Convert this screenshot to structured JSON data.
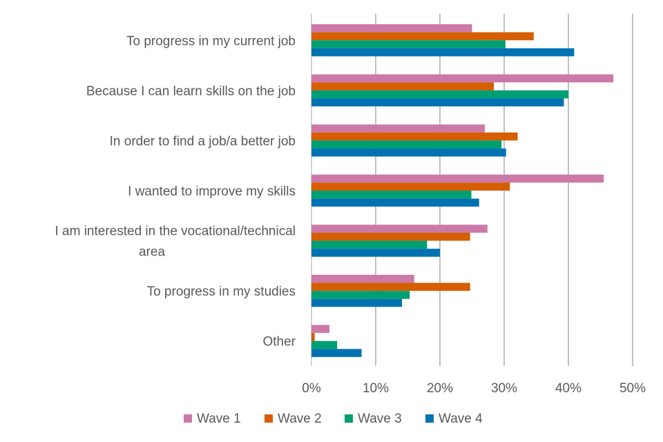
{
  "chart_data": {
    "type": "bar",
    "orientation": "horizontal",
    "categories": [
      "To progress in my current job",
      "Because I can learn skills on the job",
      "In order to find a job/a better job",
      "I wanted to improve my skills",
      "I am interested in the vocational/technical area",
      "To progress in my studies",
      "Other"
    ],
    "category_lines": [
      [
        "To progress in my current job"
      ],
      [
        "Because I can learn skills on the job"
      ],
      [
        "In order to find a job/a better job"
      ],
      [
        "I wanted to improve my skills"
      ],
      [
        "I am interested in the vocational/technical",
        "area"
      ],
      [
        "To progress in my studies"
      ],
      [
        "Other"
      ]
    ],
    "series": [
      {
        "name": "Wave 1",
        "color": "#cc79a7",
        "values": [
          25,
          47,
          27,
          45.5,
          27.4,
          16,
          2.8
        ]
      },
      {
        "name": "Wave 2",
        "color": "#d55e00",
        "values": [
          34.6,
          28.4,
          32.1,
          30.9,
          24.7,
          24.7,
          0.5
        ]
      },
      {
        "name": "Wave 3",
        "color": "#009e73",
        "values": [
          30.2,
          40,
          29.6,
          24.9,
          18,
          15.3,
          4
        ]
      },
      {
        "name": "Wave 4",
        "color": "#0072b2",
        "values": [
          40.9,
          39.3,
          30.3,
          26.1,
          20,
          14.1,
          7.8
        ]
      }
    ],
    "x_ticks": [
      "0%",
      "10%",
      "20%",
      "30%",
      "40%",
      "50%"
    ],
    "xlim": [
      0,
      50
    ],
    "grid": true,
    "legend": "bottom",
    "title": "",
    "xlabel": "",
    "ylabel": ""
  }
}
